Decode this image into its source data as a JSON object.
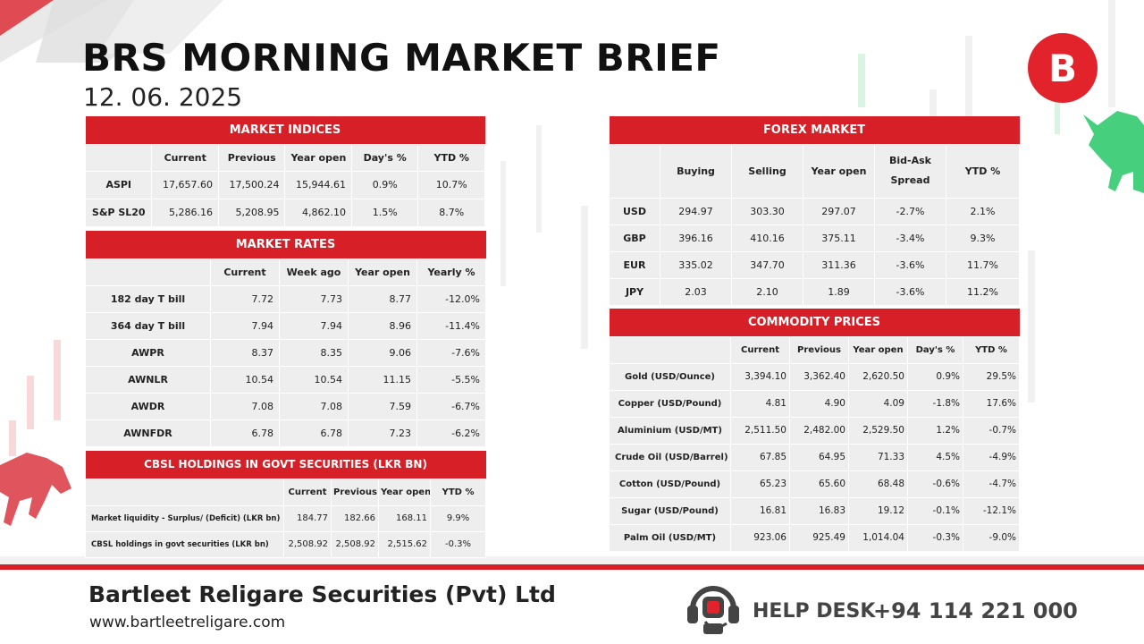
{
  "header": {
    "title": "BRS MORNING MARKET BRIEF",
    "date": "12. 06. 2025",
    "logo_letter": "B"
  },
  "market_indices": {
    "title": "MARKET INDICES",
    "columns": [
      "Current",
      "Previous",
      "Year open",
      "Day's %",
      "YTD %"
    ],
    "rows": [
      [
        "ASPI",
        "17,657.60",
        "17,500.24",
        "15,944.61",
        "0.9%",
        "10.7%"
      ],
      [
        "S&P SL20",
        "5,286.16",
        "5,208.95",
        "4,862.10",
        "1.5%",
        "8.7%"
      ]
    ]
  },
  "market_rates": {
    "title": "MARKET RATES",
    "columns": [
      "Current",
      "Week ago",
      "Year open",
      "Yearly %"
    ],
    "rows": [
      [
        "182 day T bill",
        "7.72",
        "7.73",
        "8.77",
        "-12.0%"
      ],
      [
        "364 day T bill",
        "7.94",
        "7.94",
        "8.96",
        "-11.4%"
      ],
      [
        "AWPR",
        "8.37",
        "8.35",
        "9.06",
        "-7.6%"
      ],
      [
        "AWNLR",
        "10.54",
        "10.54",
        "11.15",
        "-5.5%"
      ],
      [
        "AWDR",
        "7.08",
        "7.08",
        "7.59",
        "-6.7%"
      ],
      [
        "AWNFDR",
        "6.78",
        "6.78",
        "7.23",
        "-6.2%"
      ]
    ]
  },
  "cbsl_holdings": {
    "title": "CBSL HOLDINGS IN GOVT SECURITIES (LKR BN)",
    "columns": [
      "Current",
      "Previous",
      "Year open",
      "YTD %"
    ],
    "rows": [
      [
        "Market liquidity - Surplus/ (Deficit) (LKR bn)",
        "184.77",
        "182.66",
        "168.11",
        "9.9%"
      ],
      [
        "CBSL holdings in govt securities (LKR bn)",
        "2,508.92",
        "2,508.92",
        "2,515.62",
        "-0.3%"
      ]
    ]
  },
  "forex_market": {
    "title": "FOREX MARKET",
    "columns": [
      "Buying",
      "Selling",
      "Year open",
      "Bid-Ask Spread",
      "YTD %"
    ],
    "rows": [
      [
        "USD",
        "294.97",
        "303.30",
        "297.07",
        "-2.7%",
        "2.1%"
      ],
      [
        "GBP",
        "396.16",
        "410.16",
        "375.11",
        "-3.4%",
        "9.3%"
      ],
      [
        "EUR",
        "335.02",
        "347.70",
        "311.36",
        "-3.6%",
        "11.7%"
      ],
      [
        "JPY",
        "2.03",
        "2.10",
        "1.89",
        "-3.6%",
        "11.2%"
      ]
    ]
  },
  "commodity_prices": {
    "title": "COMMODITY PRICES",
    "columns": [
      "Current",
      "Previous",
      "Year open",
      "Day's %",
      "YTD %"
    ],
    "rows": [
      [
        "Gold (USD/Ounce)",
        "3,394.10",
        "3,362.40",
        "2,620.50",
        "0.9%",
        "29.5%"
      ],
      [
        "Copper (USD/Pound)",
        "4.81",
        "4.90",
        "4.09",
        "-1.8%",
        "17.6%"
      ],
      [
        "Aluminium (USD/MT)",
        "2,511.50",
        "2,482.00",
        "2,529.50",
        "1.2%",
        "-0.7%"
      ],
      [
        "Crude Oil (USD/Barrel)",
        "67.85",
        "64.95",
        "71.33",
        "4.5%",
        "-4.9%"
      ],
      [
        "Cotton (USD/Pound)",
        "65.23",
        "65.60",
        "68.48",
        "-0.6%",
        "-4.7%"
      ],
      [
        "Sugar (USD/Pound)",
        "16.81",
        "16.83",
        "19.12",
        "-0.1%",
        "-12.1%"
      ],
      [
        "Palm Oil (USD/MT)",
        "923.06",
        "925.49",
        "1,014.04",
        "-0.3%",
        "-9.0%"
      ]
    ]
  },
  "footer": {
    "company": "Bartleet Religare Securities (Pvt) Ltd",
    "website": "www.bartleetreligare.com",
    "help_label": "HELP DESK",
    "help_phone": "+94 114 221 000"
  },
  "colors": {
    "accent": "#d61f26",
    "cell": "#eeeeee",
    "bull": "#3fcf7a",
    "bear": "#e06060"
  }
}
